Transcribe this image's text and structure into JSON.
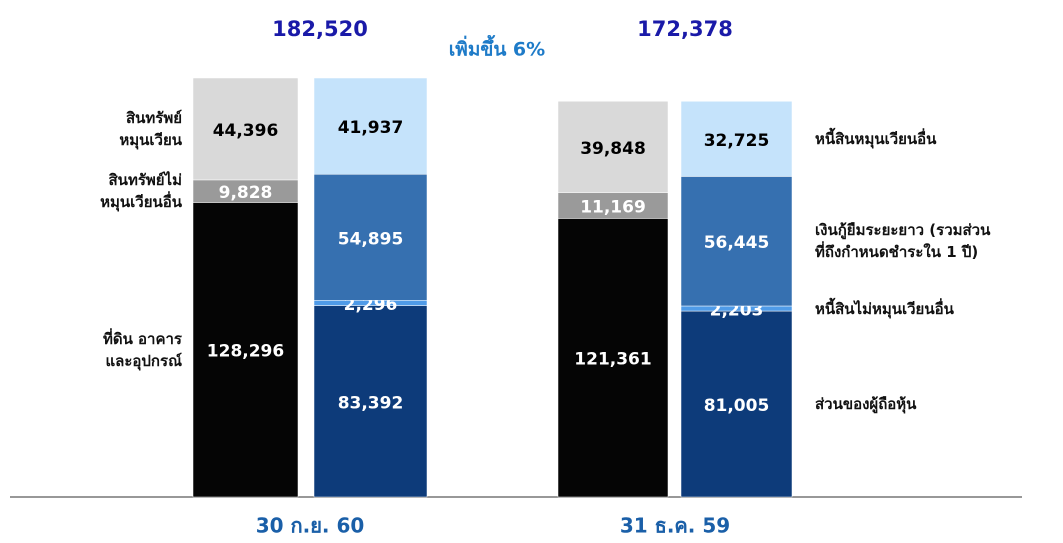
{
  "chart_data": {
    "type": "stacked_bar",
    "categories": [
      "30 ก.ย. 60",
      "31 ธ.ค. 59"
    ],
    "totals": [
      182520,
      172378
    ],
    "total_labels": [
      "182,520",
      "172,378"
    ],
    "annotation": "เพิ่มขึ้น 6%",
    "stacks": [
      {
        "series": [
          {
            "name": "ที่ดิน อาคาร\nและอุปกรณ์",
            "color": "#050505",
            "values": [
              128296,
              121361
            ],
            "value_labels": [
              "128,296",
              "121,361"
            ]
          },
          {
            "name": "สินทรัพย์ไม่\nหมุนเวียนอื่น",
            "color": "#9a9a9a",
            "values": [
              9828,
              11169
            ],
            "value_labels": [
              "9,828",
              "11,169"
            ]
          },
          {
            "name": "สินทรัพย์\nหมุนเวียน",
            "color": "#d9d9d9",
            "values": [
              44396,
              39848
            ],
            "value_labels": [
              "44,396",
              "39,848"
            ]
          }
        ]
      },
      {
        "series": [
          {
            "name": "ส่วนของผู้ถือหุ้น",
            "color": "#0d3b7a",
            "values": [
              83392,
              81005
            ],
            "value_labels": [
              "83,392",
              "81,005"
            ]
          },
          {
            "name": "หนี้สินไม่หมุนเวียนอื่น",
            "color": "#4f9be8",
            "values": [
              2296,
              2203
            ],
            "value_labels": [
              "2,296",
              "2,203"
            ]
          },
          {
            "name": "เงินกู้ยืมระยะยาว (รวมส่วน\nที่ถึงกำหนดชำระใน 1 ปี)",
            "color": "#3670b0",
            "values": [
              54895,
              56445
            ],
            "value_labels": [
              "54,895",
              "56,445"
            ]
          },
          {
            "name": "หนี้สินหมุนเวียนอื่น",
            "color": "#c5e3fb",
            "values": [
              41937,
              32725
            ],
            "value_labels": [
              "41,937",
              "32,725"
            ]
          }
        ]
      }
    ]
  }
}
